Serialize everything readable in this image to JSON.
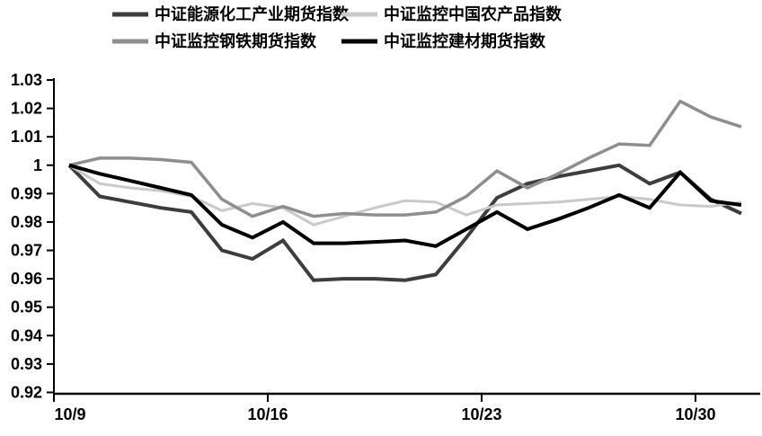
{
  "chart_data": {
    "type": "line",
    "title": "",
    "xlabel": "",
    "ylabel": "",
    "grid": false,
    "legend_position": "top",
    "ylim": [
      0.92,
      1.03
    ],
    "y_tick_step": 0.01,
    "y_tick_labels": [
      "0.92",
      "0.93",
      "0.94",
      "0.95",
      "0.96",
      "0.97",
      "0.98",
      "0.99",
      "1",
      "1.01",
      "1.02",
      "1.03"
    ],
    "x_tick_labels": [
      "10/9",
      "10/16",
      "10/23",
      "10/30"
    ],
    "x_tick_point_indices": [
      0,
      7,
      14,
      21
    ],
    "x_daily": [
      "10/9",
      "10/10",
      "10/11",
      "10/12",
      "10/13",
      "10/14",
      "10/15",
      "10/16",
      "10/17",
      "10/18",
      "10/19",
      "10/20",
      "10/21",
      "10/22",
      "10/23",
      "10/24",
      "10/25",
      "10/26",
      "10/27",
      "10/28",
      "10/29",
      "10/30",
      "10/31"
    ],
    "series": [
      {
        "name": "中证能源化工产业期货指数",
        "key": "energy-chemical",
        "color": "#3d3d3d",
        "width": 4,
        "values": [
          1.0,
          0.989,
          0.987,
          0.985,
          0.9835,
          0.97,
          0.967,
          0.9735,
          0.9595,
          0.96,
          0.96,
          0.9595,
          0.9615,
          0.9745,
          0.9885,
          0.9935,
          0.996,
          0.998,
          1.0,
          0.9935,
          0.9975,
          0.988,
          0.983
        ]
      },
      {
        "name": "中证监控中国农产品指数",
        "key": "china-agri",
        "color": "#c9c9c9",
        "width": 3,
        "values": [
          1.0,
          0.9935,
          0.992,
          0.991,
          0.989,
          0.984,
          0.9865,
          0.985,
          0.979,
          0.982,
          0.985,
          0.9875,
          0.987,
          0.9825,
          0.986,
          0.9865,
          0.987,
          0.988,
          0.989,
          0.988,
          0.986,
          0.9855,
          0.987
        ]
      },
      {
        "name": "中证监控钢铁期货指数",
        "key": "steel-futures",
        "color": "#8e8e8e",
        "width": 3.5,
        "values": [
          1.0,
          1.0025,
          1.0025,
          1.002,
          1.001,
          0.988,
          0.982,
          0.9855,
          0.982,
          0.983,
          0.9825,
          0.9825,
          0.9835,
          0.989,
          0.998,
          0.992,
          0.997,
          1.0025,
          1.0075,
          1.007,
          1.0225,
          1.017,
          1.0135
        ]
      },
      {
        "name": "中证监控建材期货指数",
        "key": "building-materials",
        "color": "#000000",
        "width": 4,
        "values": [
          1.0,
          0.997,
          0.9945,
          0.992,
          0.9895,
          0.979,
          0.9745,
          0.98,
          0.9725,
          0.9725,
          0.973,
          0.9735,
          0.9715,
          0.9775,
          0.9835,
          0.9775,
          0.981,
          0.985,
          0.9895,
          0.985,
          0.9975,
          0.9875,
          0.986
        ]
      }
    ]
  },
  "colors": {
    "background": "#ffffff",
    "axis": "#000000",
    "text": "#000000"
  }
}
